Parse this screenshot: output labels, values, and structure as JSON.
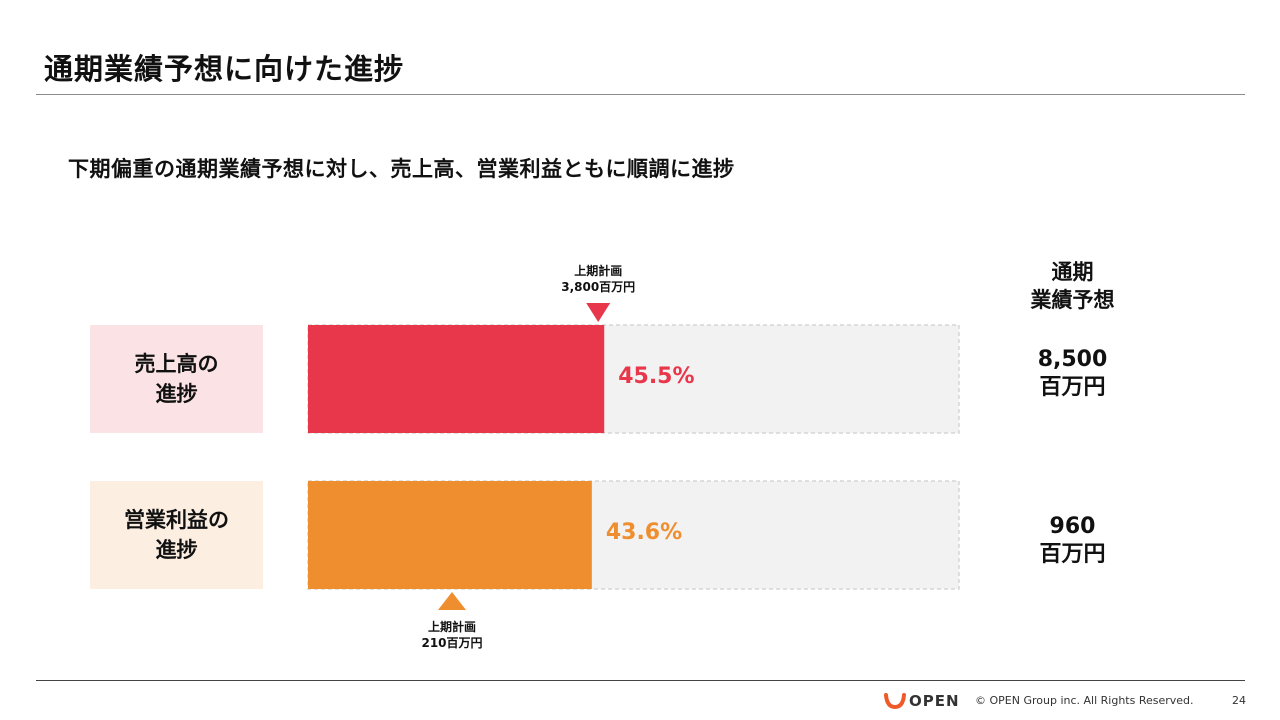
{
  "title": "通期業績予想に向けた進捗",
  "subtitle": "下期偏重の通期業績予想に対し、売上高、営業利益ともに順調に進捗",
  "fy_header": [
    "通期",
    "業績予想"
  ],
  "colors": {
    "sales": "#e8364b",
    "operating_profit": "#ef8e2e",
    "remaining": "#f2f2f2",
    "remaining_border": "#d6d6d6"
  },
  "chart_data": {
    "type": "bar",
    "orientation": "horizontal",
    "unit": "百万円",
    "rows": [
      {
        "label_lines": [
          "売上高の",
          "進捗"
        ],
        "progress_pct": 45.5,
        "progress_label": "45.5%",
        "plan_h1": 3800,
        "plan_h1_label_lines": [
          "上期計画",
          "3,800百万円"
        ],
        "plan_h1_marker_position": "above",
        "full_year_forecast": 8500,
        "forecast_label_lines": [
          "8,500",
          "百万円"
        ]
      },
      {
        "label_lines": [
          "営業利益の",
          "進捗"
        ],
        "progress_pct": 43.6,
        "progress_label": "43.6%",
        "plan_h1": 210,
        "plan_h1_label_lines": [
          "上期計画",
          "210百万円"
        ],
        "plan_h1_marker_position": "below",
        "full_year_forecast": 960,
        "forecast_label_lines": [
          "960",
          "百万円"
        ]
      }
    ]
  },
  "footer": {
    "logo_text": "OPEN",
    "copyright": "© OPEN Group inc. All Rights Reserved.",
    "page_number": "24"
  }
}
